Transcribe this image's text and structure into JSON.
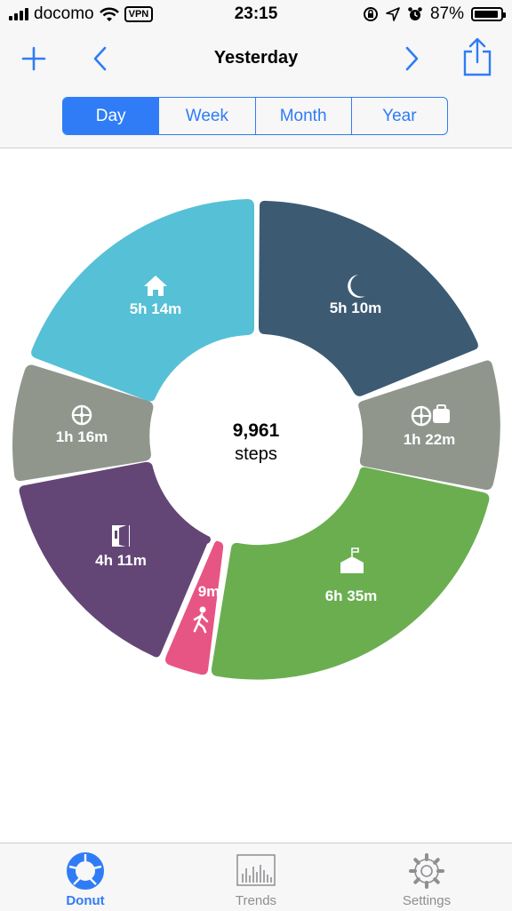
{
  "status": {
    "carrier": "docomo",
    "vpn": "VPN",
    "time": "23:15",
    "battery": "87%"
  },
  "nav": {
    "title": "Yesterday",
    "add_icon": "plus-icon",
    "prev_icon": "chevron-left-icon",
    "next_icon": "chevron-right-icon",
    "share_icon": "share-icon"
  },
  "segments": [
    "Day",
    "Week",
    "Month",
    "Year"
  ],
  "selected_segment": "Day",
  "donut": {
    "center_value": "9,961",
    "center_unit": "steps",
    "slices": [
      {
        "label": "5h 10m",
        "icon": "moon-icon",
        "color": "#3d5a73"
      },
      {
        "label": "1h 22m",
        "icon": "car-luggage-icon",
        "color": "#91968d"
      },
      {
        "label": "6h 35m",
        "icon": "school-icon",
        "color": "#6aae50"
      },
      {
        "label": "9m",
        "icon": "walking-icon",
        "color": "#e75585"
      },
      {
        "label": "4h 11m",
        "icon": "door-icon",
        "color": "#634676"
      },
      {
        "label": "1h 16m",
        "icon": "steering-wheel-icon",
        "color": "#91968d"
      },
      {
        "label": "5h 14m",
        "icon": "home-icon",
        "color": "#56c0d6"
      }
    ]
  },
  "tabs": [
    {
      "label": "Donut",
      "icon": "donut-icon",
      "active": true
    },
    {
      "label": "Trends",
      "icon": "bar-chart-icon",
      "active": false
    },
    {
      "label": "Settings",
      "icon": "gear-icon",
      "active": false
    }
  ],
  "colors": {
    "accent": "#2f7cf6"
  }
}
